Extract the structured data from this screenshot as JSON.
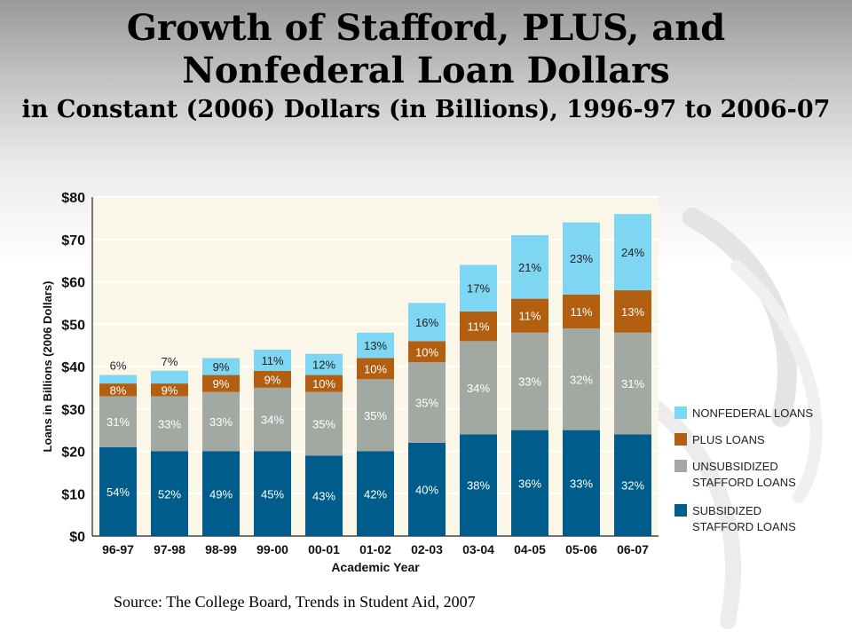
{
  "page": {
    "title_line1": "Growth of Stafford, PLUS, and",
    "title_line2": "Nonfederal Loan Dollars",
    "title_line3": "in Constant (2006) Dollars (in Billions), 1996-97 to 2006-07",
    "source": "Source: The College Board, Trends in Student Aid, 2007"
  },
  "chart_data": {
    "type": "bar",
    "stacked": true,
    "title": "",
    "xlabel": "Academic Year",
    "ylabel": "Loans in Billions (2006 Dollars)",
    "ylim": [
      0,
      80
    ],
    "yticks": [
      "$0",
      "$10",
      "$20",
      "$30",
      "$40",
      "$50",
      "$60",
      "$70",
      "$80"
    ],
    "ytick_values": [
      0,
      10,
      20,
      30,
      40,
      50,
      60,
      70,
      80
    ],
    "grid": true,
    "legend": "right",
    "categories": [
      "96-97",
      "97-98",
      "98-99",
      "99-00",
      "00-01",
      "01-02",
      "02-03",
      "03-04",
      "04-05",
      "05-06",
      "06-07"
    ],
    "series": [
      {
        "name": "SUBSIDIZED STAFFORD LOANS",
        "color": "#005c8a",
        "values": [
          21,
          20,
          20,
          20,
          19,
          20,
          22,
          24,
          25,
          25,
          24
        ],
        "labels": [
          "54%",
          "52%",
          "49%",
          "45%",
          "43%",
          "42%",
          "40%",
          "38%",
          "36%",
          "33%",
          "32%"
        ]
      },
      {
        "name": "UNSUBSIDIZED STAFFORD LOANS",
        "color": "#a2a9a3",
        "values": [
          12,
          13,
          14,
          15,
          15,
          17,
          19,
          22,
          23,
          24,
          24
        ],
        "labels": [
          "31%",
          "33%",
          "33%",
          "34%",
          "35%",
          "35%",
          "35%",
          "34%",
          "33%",
          "32%",
          "31%"
        ]
      },
      {
        "name": "PLUS LOANS",
        "color": "#b35f12",
        "values": [
          3,
          3,
          4,
          4,
          4,
          5,
          5,
          7,
          8,
          8,
          10
        ],
        "labels": [
          "8%",
          "9%",
          "9%",
          "9%",
          "10%",
          "10%",
          "10%",
          "11%",
          "11%",
          "11%",
          "13%"
        ]
      },
      {
        "name": "NONFEDERAL LOANS",
        "color": "#7fd6f3",
        "values": [
          2,
          3,
          4,
          5,
          5,
          6,
          9,
          11,
          15,
          17,
          18
        ],
        "labels": [
          "6%",
          "7%",
          "9%",
          "11%",
          "12%",
          "13%",
          "16%",
          "17%",
          "21%",
          "23%",
          "24%"
        ]
      }
    ]
  }
}
